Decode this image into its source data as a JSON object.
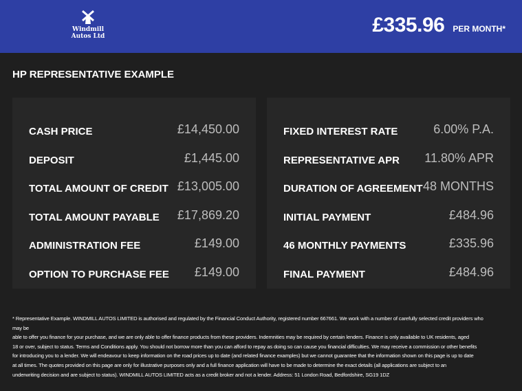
{
  "header": {
    "logo_text_1": "Windmill",
    "logo_text_2": "Autos Ltd",
    "price": "£335.96",
    "per_month": "PER MONTH*",
    "brand_color": "#2e3fa4"
  },
  "title": "HP REPRESENTATIVE EXAMPLE",
  "left": [
    {
      "label": "CASH PRICE",
      "value": "£14,450.00"
    },
    {
      "label": "DEPOSIT",
      "value": "£1,445.00"
    },
    {
      "label": "TOTAL AMOUNT OF CREDIT",
      "value": "£13,005.00"
    },
    {
      "label": "TOTAL AMOUNT PAYABLE",
      "value": "£17,869.20"
    },
    {
      "label": "ADMINISTRATION FEE",
      "value": "£149.00"
    },
    {
      "label": "OPTION TO PURCHASE FEE",
      "value": "£149.00"
    }
  ],
  "right": [
    {
      "label": "FIXED INTEREST RATE",
      "value": "6.00% P.A."
    },
    {
      "label": "REPRESENTATIVE APR",
      "value": "11.80% APR"
    },
    {
      "label": "DURATION OF AGREEMENT",
      "value": "48 MONTHS"
    },
    {
      "label": "INITIAL PAYMENT",
      "value": "£484.96"
    },
    {
      "label": "46 MONTHLY PAYMENTS",
      "value": "£335.96"
    },
    {
      "label": "FINAL PAYMENT",
      "value": "£484.96"
    }
  ],
  "footer": [
    "* Representative Example. WINDMILL AUTOS LIMITED is authorised and regulated by the Financial Conduct Authority, registered number 667661. We work with a number of carefully selected credit providers who may be",
    "able to offer you finance for your purchase, and we are only able to offer finance products from these providers. Indemnities may be required by certain lenders. Finance is only available to UK residents, aged",
    "18 or over, subject to status. Terms and Conditions apply. You should not borrow more than you can afford to repay as doing so can cause you financial difficulties. We may receive a commission or other benefits",
    "for introducing you to a lender. We will endeavour to keep information on the road prices up to date (and related finance examples) but we cannot guarantee that the information shown on this page is up to date",
    "at all times. The quotes provided on this page are only for illustrative purposes only and a full finance application will have to be made to determine the exact details (all applications are subject to an",
    "underwriting decision and are subject to status). WINDMILL AUTOS LIMITED acts as a credit broker and not a lender. Address: 51 London Road, Bedfordshire, SG19 1DZ"
  ]
}
